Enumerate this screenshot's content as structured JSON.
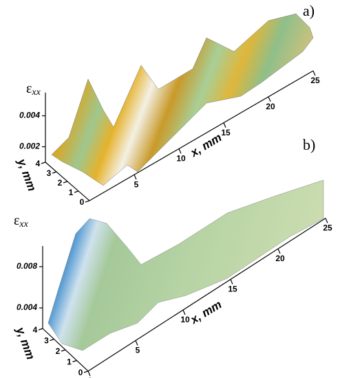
{
  "chart_data": [
    {
      "type": "surface3d",
      "panel_label": "a)",
      "zlabel": {
        "symbol": "ε",
        "subscript": "xx"
      },
      "xlabel": "x, mm",
      "ylabel": "y, mm",
      "xlim": [
        0,
        25
      ],
      "xticks": [
        5,
        10,
        15,
        20,
        25
      ],
      "ylim": [
        0,
        4
      ],
      "yticks": [
        0,
        1,
        2,
        3,
        4
      ],
      "zlim": [
        0.001,
        0.0055
      ],
      "zticks": [
        0.002,
        0.004
      ]
    },
    {
      "type": "surface3d",
      "panel_label": "b)",
      "zlabel": {
        "symbol": "ε",
        "subscript": "xx"
      },
      "xlabel": "x, mm",
      "ylabel": "y, mm",
      "xlim": [
        0,
        25
      ],
      "xticks": [
        0,
        5,
        10,
        15,
        20,
        25
      ],
      "ylim": [
        0,
        4
      ],
      "yticks": [
        0,
        1,
        2,
        3,
        4
      ],
      "zlim": [
        0.002,
        0.01
      ],
      "zticks": [
        0.004,
        0.008
      ]
    }
  ]
}
